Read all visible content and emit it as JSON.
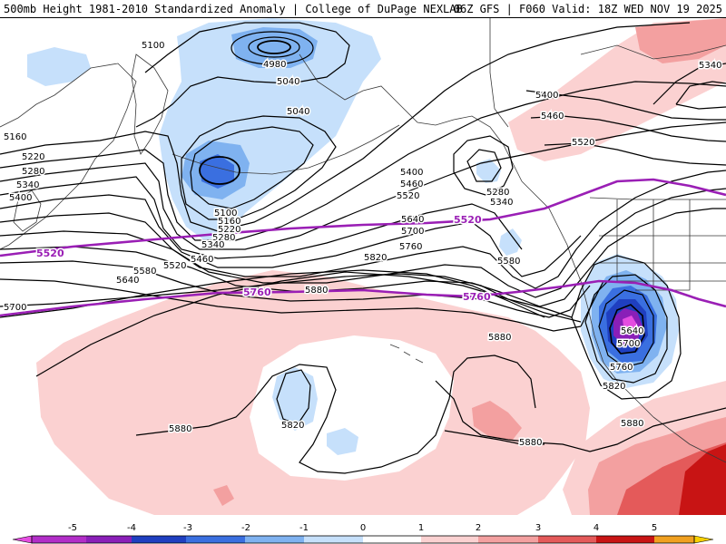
{
  "header": {
    "title_left": "500mb Height 1981-2010 Standardized Anomaly | College of DuPage NEXLAB",
    "title_right": "06Z GFS | F060 Valid: 18Z WED NOV 19 2025"
  },
  "colors": {
    "anom_neg_1": "#c6e0fb",
    "anom_neg_2": "#7fb2f0",
    "anom_neg_3": "#3a6fe0",
    "anom_neg_4": "#1f3fc0",
    "anom_neg_5": "#8a1fb8",
    "anom_neg_6": "#e44de0",
    "anom_pos_1": "#fbd1d1",
    "anom_pos_2": "#f3a0a0",
    "anom_pos_3": "#e45a5a",
    "anom_pos_4": "#c81414",
    "anom_pos_5": "#9a0000",
    "height_contour": "#000000",
    "highlight_contour": "#9a1fb5",
    "coastline": "#3a3a3a"
  },
  "contour_labels": [
    "5100",
    "4980",
    "5040",
    "5040",
    "5160",
    "5220",
    "5280",
    "5340",
    "5400",
    "5100",
    "5160",
    "5220",
    "5280",
    "5340",
    "5460",
    "5520",
    "5580",
    "5640",
    "5700",
    "5400",
    "5460",
    "5520",
    "5280",
    "5340",
    "5580",
    "5400",
    "5460",
    "5520",
    "5340",
    "5640",
    "5700",
    "5760",
    "5820",
    "5880",
    "5880",
    "5640",
    "5700",
    "5760",
    "5820",
    "5820",
    "5880",
    "5880",
    "5880"
  ],
  "highlight_labels": [
    "5520",
    "5520",
    "5760",
    "5760"
  ],
  "colorbar": {
    "ticks": [
      "-5",
      "-4",
      "-3",
      "-2",
      "-1",
      "0",
      "1",
      "2",
      "3",
      "4",
      "5"
    ],
    "range": [
      -6,
      6
    ]
  }
}
